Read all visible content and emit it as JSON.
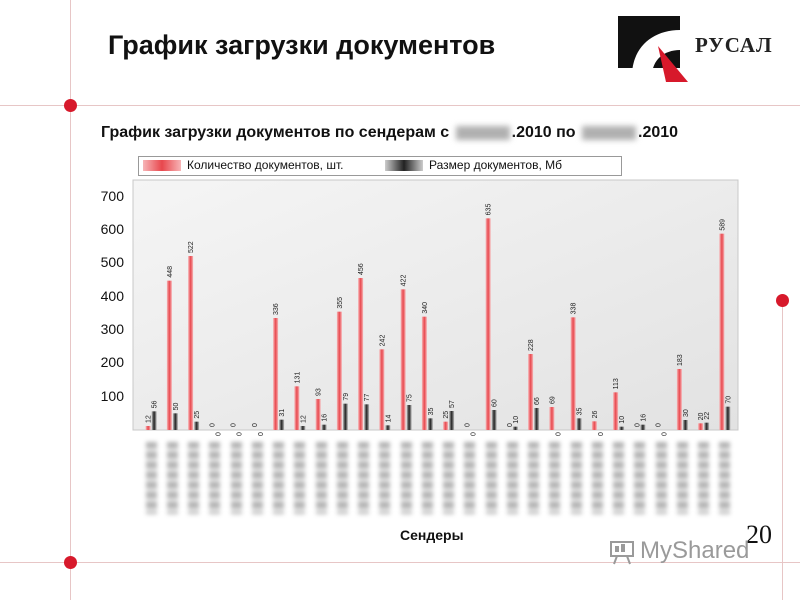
{
  "slide": {
    "title": "График загрузки документов",
    "brand": "РУСАЛ",
    "page_number": "20",
    "watermark": "MyShared"
  },
  "colors": {
    "accent_dot": "#d7192b",
    "documents_bar": "#e8474d",
    "size_bar": "#222222",
    "plot_bg": "#efefef"
  },
  "chart_data": {
    "type": "bar",
    "title_prefix": "График загрузки документов по сендерам с ",
    "title_middle": ".2010 по ",
    "title_suffix": ".2010",
    "xlabel": "Сендеры",
    "ylabel": "",
    "ylim": [
      0,
      750
    ],
    "yticks": [
      100,
      200,
      300,
      400,
      500,
      600,
      700
    ],
    "grid": false,
    "legend_position": "top",
    "series": [
      {
        "name": "Количество документов, шт.",
        "values": [
          12,
          448,
          522,
          0,
          0,
          0,
          336,
          131,
          93,
          355,
          456,
          242,
          422,
          340,
          25,
          0,
          635,
          0,
          228,
          69,
          338,
          26,
          113,
          0,
          0,
          183,
          20,
          589
        ]
      },
      {
        "name": "Размер документов, Мб",
        "values": [
          56,
          50,
          25,
          0,
          0,
          0,
          31,
          12,
          16,
          79,
          77,
          14,
          75,
          35,
          57,
          0,
          60,
          10,
          66,
          0,
          35,
          0,
          10,
          16,
          0,
          30,
          22,
          70
        ]
      }
    ]
  }
}
